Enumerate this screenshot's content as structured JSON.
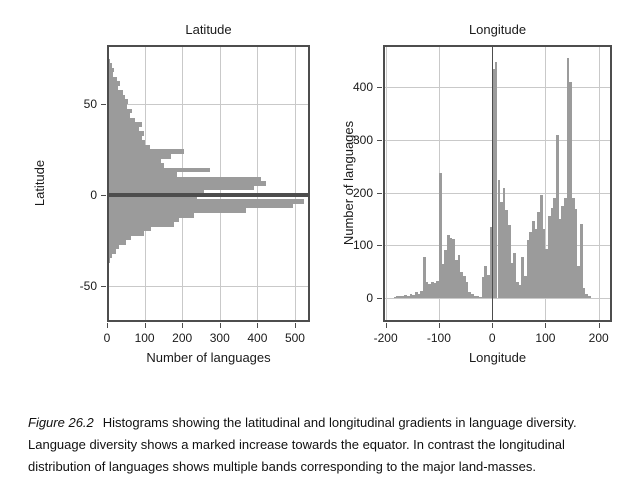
{
  "caption": {
    "label": "Figure 26.2",
    "text": "Histograms showing the latitudinal and longitudinal gradients in language diversity. Language diversity shows a marked increase towards the equator. In contrast the longitudinal distribution of languages shows multiple bands corresponding to the major land-masses."
  },
  "colors": {
    "bar": "#9b9b9b",
    "grid": "#c9c9c9",
    "frame": "#4d4d4d",
    "text": "#1a1a1a"
  },
  "chart_data": [
    {
      "type": "bar",
      "subtype": "histogram",
      "orientation": "horizontal",
      "title": "Latitude",
      "xlabel": "Number of languages",
      "ylabel": "Latitude",
      "x_ticks": [
        0,
        100,
        200,
        300,
        400,
        500
      ],
      "y_ticks": [
        -50,
        0,
        50
      ],
      "xlim": [
        0,
        540
      ],
      "ylim": [
        -70,
        82.5
      ],
      "ref_y": 0,
      "bin_start": -57.5,
      "bin_width": 2.5,
      "bin_axis": "latitude",
      "values": [
        1,
        2,
        2,
        3,
        3,
        4,
        5,
        6,
        9,
        14,
        23,
        32,
        50,
        63,
        99,
        118,
        179,
        192,
        232,
        370,
        495,
        525,
        240,
        259,
        392,
        424,
        410,
        187,
        275,
        152,
        143,
        170,
        205,
        115,
        102,
        93,
        98,
        84,
        93,
        75,
        62,
        66,
        52,
        57,
        48,
        43,
        30,
        34,
        26,
        15,
        18,
        12,
        8,
        3
      ]
    },
    {
      "type": "bar",
      "subtype": "histogram",
      "orientation": "vertical",
      "title": "Longitude",
      "xlabel": "Longitude",
      "ylabel": "Number of languages",
      "x_ticks": [
        -200,
        -100,
        0,
        100,
        200
      ],
      "y_ticks": [
        0,
        100,
        200,
        300,
        400
      ],
      "xlim": [
        -205,
        225
      ],
      "ylim": [
        -45,
        480
      ],
      "ref_x": 0,
      "bin_start": -185,
      "bin_width": 5,
      "bin_axis": "longitude",
      "values": [
        3,
        4,
        5,
        4,
        7,
        5,
        9,
        7,
        11,
        9,
        14,
        78,
        30,
        27,
        30,
        29,
        33,
        238,
        65,
        92,
        120,
        115,
        112,
        72,
        82,
        50,
        42,
        30,
        12,
        8,
        5,
        4,
        3,
        40,
        62,
        45,
        135,
        435,
        447,
        225,
        183,
        209,
        167,
        139,
        66,
        85,
        30,
        25,
        78,
        42,
        110,
        126,
        147,
        132,
        163,
        196,
        131,
        93,
        156,
        172,
        190,
        310,
        150,
        175,
        190,
        455,
        410,
        190,
        170,
        62,
        140,
        20,
        8,
        4
      ]
    }
  ]
}
